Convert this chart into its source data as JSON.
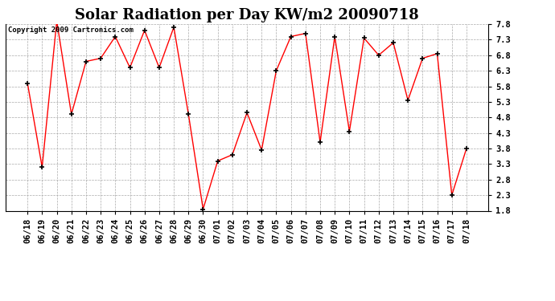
{
  "title": "Solar Radiation per Day KW/m2 20090718",
  "copyright": "Copyright 2009 Cartronics.com",
  "labels": [
    "06/18",
    "06/19",
    "06/20",
    "06/21",
    "06/22",
    "06/23",
    "06/24",
    "06/25",
    "06/26",
    "06/27",
    "06/28",
    "06/29",
    "06/30",
    "07/01",
    "07/02",
    "07/03",
    "07/04",
    "07/05",
    "07/06",
    "07/07",
    "07/08",
    "07/09",
    "07/10",
    "07/11",
    "07/12",
    "07/13",
    "07/14",
    "07/15",
    "07/16",
    "07/17",
    "07/18"
  ],
  "values": [
    5.9,
    3.2,
    7.9,
    4.9,
    6.6,
    6.7,
    7.4,
    6.4,
    7.6,
    6.4,
    7.7,
    4.9,
    1.85,
    3.4,
    3.6,
    4.95,
    3.75,
    6.3,
    7.4,
    7.5,
    4.0,
    7.4,
    4.35,
    7.35,
    6.8,
    7.2,
    5.35,
    6.7,
    6.85,
    2.3,
    3.8
  ],
  "line_color": "#ff0000",
  "marker_color": "#000000",
  "bg_color": "#ffffff",
  "grid_color": "#aaaaaa",
  "ylim_min": 1.8,
  "ylim_max": 7.8,
  "yticks": [
    1.8,
    2.3,
    2.8,
    3.3,
    3.8,
    4.3,
    4.8,
    5.3,
    5.8,
    6.3,
    6.8,
    7.3,
    7.8
  ],
  "title_fontsize": 13,
  "copyright_fontsize": 6.5,
  "tick_fontsize": 7.5
}
